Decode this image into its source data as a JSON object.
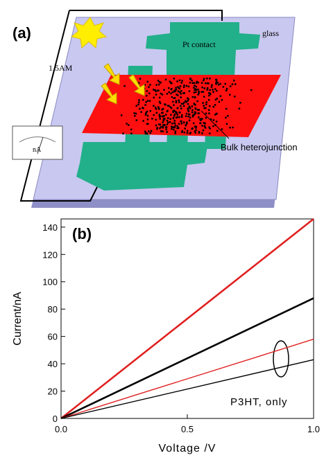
{
  "diagram": {
    "panel_label": "(a)",
    "pt_contact": "Pt contact",
    "glass": "glass",
    "light": "1.5AM",
    "meter": "nA",
    "junction": "Bulk heterojunction"
  },
  "chart_data": {
    "type": "line",
    "panel_label": "(b)",
    "xlabel": "Voltage /V",
    "ylabel": "Current/nA",
    "annotation": "P3HT, only",
    "x": [
      0,
      1.0
    ],
    "series": [
      {
        "color": "#e02020",
        "values": [
          0,
          146
        ]
      },
      {
        "color": "#000000",
        "values": [
          0,
          88
        ]
      },
      {
        "color": "#e02020",
        "values": [
          0,
          58
        ]
      },
      {
        "color": "#000000",
        "values": [
          0,
          43
        ]
      }
    ],
    "xlim": [
      0,
      1.0
    ],
    "ylim": [
      0,
      146
    ],
    "xticks": [
      {
        "value": 0,
        "label": "0.0"
      },
      {
        "value": 0.5,
        "label": "0.5"
      },
      {
        "value": 1.0,
        "label": "1.0"
      }
    ],
    "yticks": [
      0,
      20,
      40,
      60,
      80,
      100,
      120,
      140
    ]
  }
}
